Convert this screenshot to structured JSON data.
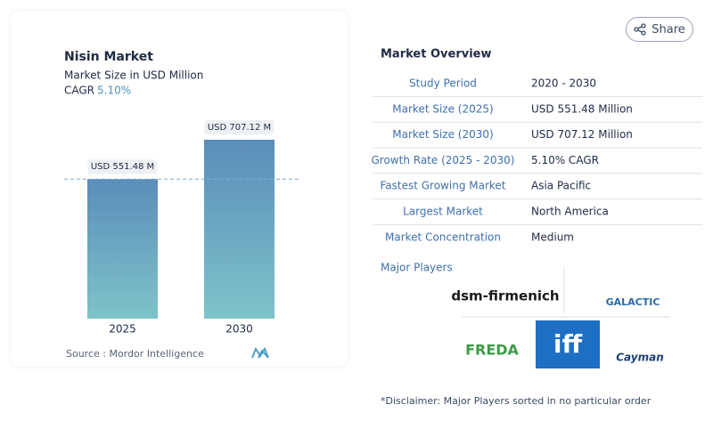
{
  "chart_data": {
    "type": "bar",
    "title": "Nisin Market",
    "subtitle": "Market Size in USD Million",
    "cagr_label": "CAGR",
    "cagr": "5.10%",
    "categories": [
      "2025",
      "2030"
    ],
    "values": [
      551.48,
      707.12
    ],
    "value_labels": [
      "USD 551.48 M",
      "USD 707.12 M"
    ],
    "source": "Source :  Mordor Intelligence"
  },
  "share": "Share",
  "overview": {
    "title": "Market Overview",
    "rows": [
      [
        "Study Period",
        "2020 - 2030"
      ],
      [
        "Market Size (2025)",
        "USD 551.48 Million"
      ],
      [
        "Market Size (2030)",
        "USD 707.12 Million"
      ],
      [
        "Growth Rate (2025 - 2030)",
        "5.10% CAGR"
      ],
      [
        "Fastest Growing Market",
        "Asia Pacific"
      ],
      [
        "Largest Market",
        "North America"
      ],
      [
        "Market Concentration",
        "Medium"
      ]
    ]
  },
  "players": {
    "title": "Major Players",
    "logos": [
      "dsm-firmenich",
      "GALACTIC",
      "FREDA",
      "iff",
      "Cayman"
    ]
  },
  "disclaimer": "*Disclaimer: Major Players sorted in no particular order"
}
